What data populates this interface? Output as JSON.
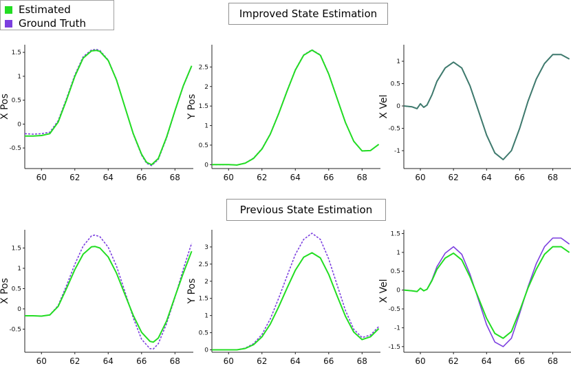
{
  "legend": {
    "items": [
      {
        "label": "Estimated",
        "color": "#22dd22"
      },
      {
        "label": "Ground Truth",
        "color": "#7b3fdf"
      }
    ]
  },
  "sections": [
    {
      "title": "Improved State Estimation"
    },
    {
      "title": "Previous State Estimation"
    }
  ],
  "chart_data": [
    {
      "type": "line",
      "section": "Improved State Estimation",
      "ylabel": "X Pos",
      "xlim": [
        59,
        69.1
      ],
      "ylim": [
        -0.93,
        1.66
      ],
      "xticks": [
        60,
        62,
        64,
        66,
        68
      ],
      "yticks": [
        -0.5,
        0,
        0.5,
        1,
        1.5
      ],
      "ytick_labels": [
        "-0.5",
        "0",
        "0.5",
        "1",
        "1.5"
      ],
      "series": [
        {
          "name": "Estimated",
          "style": "solid",
          "x": [
            59,
            59.5,
            60,
            60.5,
            61,
            61.5,
            62,
            62.5,
            63,
            63.3,
            63.5,
            64,
            64.5,
            65,
            65.5,
            66,
            66.3,
            66.6,
            67,
            67.5,
            68,
            68.5,
            69
          ],
          "y": [
            -0.25,
            -0.25,
            -0.24,
            -0.2,
            0.04,
            0.5,
            1.0,
            1.38,
            1.53,
            1.54,
            1.52,
            1.33,
            0.92,
            0.36,
            -0.2,
            -0.63,
            -0.8,
            -0.85,
            -0.72,
            -0.27,
            0.28,
            0.8,
            1.22
          ]
        },
        {
          "name": "Ground Truth",
          "style": "dashed",
          "x": [
            59,
            59.5,
            60,
            60.5,
            61,
            61.5,
            62,
            62.5,
            63,
            63.3,
            63.5,
            64,
            64.5,
            65,
            65.5,
            66,
            66.3,
            66.6,
            67,
            67.5,
            68,
            68.5,
            69
          ],
          "y": [
            -0.2,
            -0.21,
            -0.2,
            -0.17,
            0.07,
            0.53,
            1.03,
            1.41,
            1.55,
            1.56,
            1.54,
            1.34,
            0.93,
            0.36,
            -0.21,
            -0.65,
            -0.82,
            -0.87,
            -0.74,
            -0.29,
            0.27,
            0.79,
            1.21
          ]
        }
      ]
    },
    {
      "type": "line",
      "section": "Improved State Estimation",
      "ylabel": "Y Pos",
      "xlim": [
        59,
        69.1
      ],
      "ylim": [
        -0.1,
        3.07
      ],
      "xticks": [
        60,
        62,
        64,
        66,
        68
      ],
      "yticks": [
        0,
        0.5,
        1,
        1.5,
        2,
        2.5
      ],
      "ytick_labels": [
        "0",
        "0.5",
        "1",
        "1.5",
        "2",
        "2.5"
      ],
      "series": [
        {
          "name": "Estimated",
          "style": "solid",
          "x": [
            59,
            59.5,
            60,
            60.5,
            61,
            61.5,
            62,
            62.5,
            63,
            63.5,
            64,
            64.5,
            65,
            65.5,
            66,
            66.5,
            67,
            67.5,
            68,
            68.5,
            69
          ],
          "y": [
            0,
            0,
            0,
            -0.01,
            0.04,
            0.16,
            0.4,
            0.78,
            1.3,
            1.88,
            2.42,
            2.8,
            2.93,
            2.8,
            2.32,
            1.7,
            1.08,
            0.6,
            0.35,
            0.36,
            0.52
          ]
        },
        {
          "name": "Ground Truth",
          "style": "dashed",
          "x": [
            59,
            59.5,
            60,
            60.5,
            61,
            61.5,
            62,
            62.5,
            63,
            63.5,
            64,
            64.5,
            65,
            65.5,
            66,
            66.5,
            67,
            67.5,
            68,
            68.5,
            69
          ],
          "y": [
            0,
            0,
            0,
            -0.01,
            0.04,
            0.17,
            0.41,
            0.79,
            1.31,
            1.89,
            2.43,
            2.81,
            2.94,
            2.81,
            2.33,
            1.71,
            1.08,
            0.6,
            0.35,
            0.36,
            0.52
          ]
        }
      ]
    },
    {
      "type": "line",
      "section": "Improved State Estimation",
      "ylabel": "X Vel",
      "xlim": [
        59,
        69.1
      ],
      "ylim": [
        -1.4,
        1.37
      ],
      "xticks": [
        60,
        62,
        64,
        66,
        68
      ],
      "yticks": [
        -1,
        -0.5,
        0,
        0.5,
        1
      ],
      "ytick_labels": [
        "-1",
        "-0.5",
        "0",
        "0.5",
        "1"
      ],
      "series": [
        {
          "name": "Estimated",
          "style": "solid",
          "x": [
            59,
            59.5,
            59.8,
            60,
            60.2,
            60.4,
            60.7,
            61,
            61.5,
            62,
            62.5,
            63,
            63.5,
            64,
            64.5,
            65,
            65.5,
            66,
            66.5,
            67,
            67.5,
            68,
            68.5,
            69
          ],
          "y": [
            0,
            -0.02,
            -0.06,
            0.05,
            -0.03,
            0.02,
            0.25,
            0.55,
            0.85,
            0.98,
            0.85,
            0.45,
            -0.1,
            -0.65,
            -1.05,
            -1.2,
            -1.0,
            -0.5,
            0.1,
            0.6,
            0.95,
            1.15,
            1.15,
            1.05
          ]
        },
        {
          "name": "Ground Truth",
          "style": "solid",
          "x": [
            59,
            59.5,
            59.8,
            60,
            60.2,
            60.4,
            60.7,
            61,
            61.5,
            62,
            62.5,
            63,
            63.5,
            64,
            64.5,
            65,
            65.5,
            66,
            66.5,
            67,
            67.5,
            68,
            68.5,
            69
          ],
          "y": [
            0,
            -0.02,
            -0.06,
            0.05,
            -0.03,
            0.02,
            0.25,
            0.55,
            0.85,
            0.98,
            0.85,
            0.45,
            -0.1,
            -0.65,
            -1.05,
            -1.2,
            -1.0,
            -0.5,
            0.1,
            0.6,
            0.95,
            1.15,
            1.15,
            1.05
          ]
        }
      ]
    },
    {
      "type": "line",
      "section": "Previous State Estimation",
      "ylabel": "X Pos",
      "xlim": [
        59,
        69.1
      ],
      "ylim": [
        -1.07,
        1.95
      ],
      "xticks": [
        60,
        62,
        64,
        66,
        68
      ],
      "yticks": [
        -0.5,
        0,
        0.5,
        1,
        1.5
      ],
      "ytick_labels": [
        "-0.5",
        "0",
        "0.5",
        "1",
        "1.5"
      ],
      "series": [
        {
          "name": "Estimated",
          "style": "solid",
          "x": [
            59,
            59.5,
            60,
            60.5,
            61,
            61.5,
            62,
            62.5,
            63,
            63.2,
            63.5,
            64,
            64.5,
            65,
            65.5,
            66,
            66.5,
            66.7,
            67,
            67.5,
            68,
            68.5,
            69
          ],
          "y": [
            -0.17,
            -0.17,
            -0.18,
            -0.15,
            0.06,
            0.5,
            0.97,
            1.35,
            1.53,
            1.54,
            1.5,
            1.28,
            0.88,
            0.36,
            -0.16,
            -0.58,
            -0.8,
            -0.82,
            -0.72,
            -0.3,
            0.3,
            0.88,
            1.42
          ]
        },
        {
          "name": "Ground Truth",
          "style": "dashed",
          "x": [
            59,
            59.5,
            60,
            60.5,
            61,
            61.5,
            62,
            62.5,
            63,
            63.2,
            63.5,
            64,
            64.5,
            65,
            65.5,
            66,
            66.5,
            66.7,
            67,
            67.5,
            68,
            68.5,
            69
          ],
          "y": [
            -0.17,
            -0.17,
            -0.18,
            -0.15,
            0.08,
            0.57,
            1.1,
            1.55,
            1.8,
            1.82,
            1.78,
            1.52,
            1.05,
            0.43,
            -0.22,
            -0.75,
            -0.98,
            -0.99,
            -0.86,
            -0.36,
            0.28,
            0.98,
            1.62
          ]
        }
      ]
    },
    {
      "type": "line",
      "section": "Previous State Estimation",
      "ylabel": "Y Pos",
      "xlim": [
        59,
        69.1
      ],
      "ylim": [
        -0.07,
        3.5
      ],
      "xticks": [
        60,
        62,
        64,
        66,
        68
      ],
      "yticks": [
        0,
        0.5,
        1,
        1.5,
        2,
        2.5,
        3
      ],
      "ytick_labels": [
        "0",
        "0.5",
        "1",
        "1.5",
        "2",
        "2.5",
        "3"
      ],
      "series": [
        {
          "name": "Estimated",
          "style": "solid",
          "x": [
            59,
            59.5,
            60,
            60.5,
            61,
            61.5,
            62,
            62.5,
            63,
            63.5,
            64,
            64.5,
            65,
            65.5,
            66,
            66.5,
            67,
            67.5,
            68,
            68.5,
            69
          ],
          "y": [
            0,
            0,
            0,
            0,
            0.04,
            0.15,
            0.38,
            0.75,
            1.25,
            1.8,
            2.32,
            2.7,
            2.83,
            2.68,
            2.2,
            1.58,
            0.98,
            0.52,
            0.3,
            0.38,
            0.62
          ]
        },
        {
          "name": "Ground Truth",
          "style": "dashed",
          "x": [
            59,
            59.5,
            60,
            60.5,
            61,
            61.5,
            62,
            62.5,
            63,
            63.5,
            64,
            64.5,
            65,
            65.5,
            66,
            66.5,
            67,
            67.5,
            68,
            68.5,
            69
          ],
          "y": [
            0,
            0,
            0,
            0,
            0.05,
            0.18,
            0.45,
            0.9,
            1.5,
            2.15,
            2.78,
            3.22,
            3.4,
            3.22,
            2.65,
            1.9,
            1.15,
            0.6,
            0.36,
            0.43,
            0.68
          ]
        }
      ]
    },
    {
      "type": "line",
      "section": "Previous State Estimation",
      "ylabel": "X Vel",
      "xlim": [
        59,
        69.1
      ],
      "ylim": [
        -1.65,
        1.6
      ],
      "xticks": [
        60,
        62,
        64,
        66,
        68
      ],
      "yticks": [
        -1.5,
        -1,
        -0.5,
        0,
        0.5,
        1,
        1.5
      ],
      "ytick_labels": [
        "-1.5",
        "-1",
        "-0.5",
        "0",
        "0.5",
        "1",
        "1.5"
      ],
      "series": [
        {
          "name": "Estimated",
          "style": "solid",
          "x": [
            59,
            59.5,
            59.8,
            60,
            60.2,
            60.4,
            60.7,
            61,
            61.5,
            62,
            62.5,
            63,
            63.5,
            64,
            64.5,
            65,
            65.5,
            66,
            66.5,
            67,
            67.5,
            68,
            68.5,
            69
          ],
          "y": [
            0,
            -0.02,
            -0.04,
            0.05,
            -0.02,
            0.02,
            0.25,
            0.55,
            0.85,
            0.98,
            0.8,
            0.35,
            -0.2,
            -0.75,
            -1.15,
            -1.28,
            -1.1,
            -0.55,
            0.05,
            0.55,
            0.95,
            1.15,
            1.15,
            1.0
          ]
        },
        {
          "name": "Ground Truth",
          "style": "solid",
          "x": [
            59,
            59.5,
            59.8,
            60,
            60.2,
            60.4,
            60.7,
            61,
            61.5,
            62,
            62.5,
            63,
            63.5,
            64,
            64.5,
            65,
            65.5,
            66,
            66.5,
            67,
            67.5,
            68,
            68.5,
            69
          ],
          "y": [
            0,
            -0.02,
            -0.04,
            0.05,
            -0.02,
            0.02,
            0.27,
            0.62,
            0.98,
            1.15,
            0.95,
            0.42,
            -0.25,
            -0.92,
            -1.38,
            -1.5,
            -1.28,
            -0.62,
            0.08,
            0.7,
            1.15,
            1.38,
            1.38,
            1.22
          ]
        }
      ]
    }
  ]
}
